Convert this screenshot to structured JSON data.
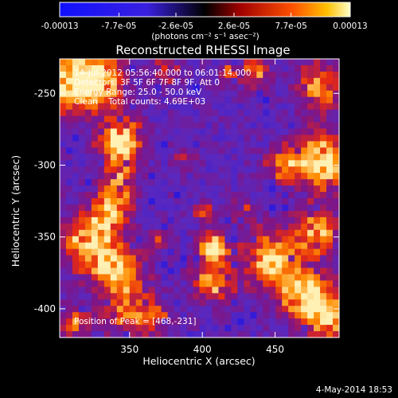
{
  "chart_data": {
    "type": "heatmap",
    "title": "Reconstructed RHESSI Image",
    "xlabel": "Heliocentric X (arcsec)",
    "ylabel": "Heliocentric Y (arcsec)",
    "xlim": [
      302,
      494
    ],
    "ylim": [
      -420,
      -226
    ],
    "x_ticks": [
      350,
      400,
      450
    ],
    "y_ticks": [
      -250,
      -300,
      -350,
      -400
    ],
    "colorbar": {
      "min": -0.00013,
      "max": 0.00013,
      "tick_values": [
        -0.00013,
        -7.7e-05,
        -2.6e-05,
        2.6e-05,
        7.7e-05,
        0.00013
      ],
      "tick_labels": [
        "-0.00013",
        "-7.7e-05",
        "-2.6e-05",
        "2.6e-05",
        "7.7e-05",
        "0.00013"
      ],
      "units": "(photons cm⁻² s⁻¹ asec⁻²)"
    },
    "annotations": [
      "14-Jul-2012 05:56:40.000 to 06:01:14.000",
      "Detectors: 3F 5F 6F 7F 8F 9F, Att 0",
      "Energy Range: 25.0 - 50.0 keV",
      "Clean    Total counts: 4.69E+03"
    ],
    "peak_label": "Position of Peak = [468,-231]",
    "peak_position": [
      468,
      -231
    ],
    "grid": false
  },
  "footer_timestamp": "4-May-2014 18:53",
  "colors": {
    "background": "#000000",
    "low": "#0000ff",
    "mid": "#6a1fb0",
    "high": "#ff2a00",
    "peak": "#ffffb0"
  }
}
